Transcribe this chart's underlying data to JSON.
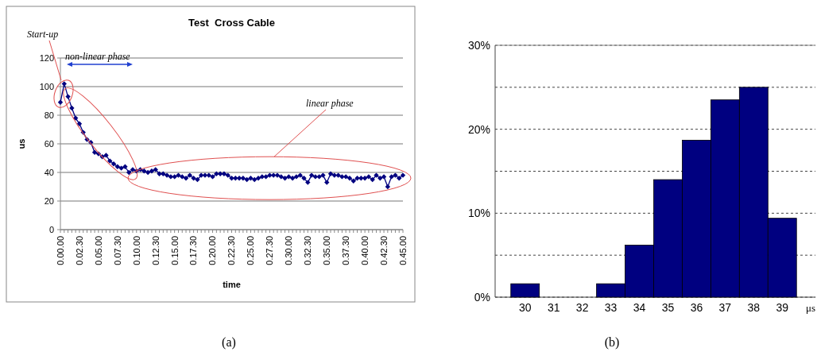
{
  "chart_data": [
    {
      "type": "line",
      "title": "Test  Cross Cable",
      "xlabel": "time",
      "ylabel": "us",
      "categories": [
        "0.00.00",
        null,
        null,
        null,
        null,
        "0.02.30",
        null,
        null,
        null,
        null,
        "0.05.00",
        null,
        null,
        null,
        null,
        "0.07.30",
        null,
        null,
        null,
        null,
        "0.10.00",
        null,
        null,
        null,
        null,
        "0.12.30",
        null,
        null,
        null,
        null,
        "0.15.00",
        null,
        null,
        null,
        null,
        "0.17.30",
        null,
        null,
        null,
        null,
        "0.20.00",
        null,
        null,
        null,
        null,
        "0.22.30",
        null,
        null,
        null,
        null,
        "0.25.00",
        null,
        null,
        null,
        null,
        "0.27.30",
        null,
        null,
        null,
        null,
        "0.30.00",
        null,
        null,
        null,
        null,
        "0.32.30",
        null,
        null,
        null,
        null,
        "0.35.00",
        null,
        null,
        null,
        null,
        "0.37.30",
        null,
        null,
        null,
        null,
        "0.40.00",
        null,
        null,
        null,
        null,
        "0.42.30",
        null,
        null,
        null,
        null,
        "0.45.00"
      ],
      "series": [
        {
          "color": "#000080",
          "values": [
            89,
            102,
            93,
            85,
            78,
            74,
            68,
            63,
            61,
            54,
            53,
            51,
            52,
            48,
            46,
            44,
            43,
            44,
            40,
            42,
            41,
            42,
            41,
            40,
            41,
            42,
            39,
            39,
            38,
            37,
            37,
            38,
            37,
            36,
            38,
            36,
            35,
            38,
            38,
            38,
            37,
            39,
            39,
            39,
            38,
            36,
            36,
            36,
            36,
            35,
            36,
            35,
            36,
            37,
            37,
            38,
            38,
            38,
            37,
            36,
            37,
            36,
            37,
            38,
            36,
            33,
            38,
            37,
            37,
            38,
            33,
            39,
            38,
            38,
            37,
            37,
            36,
            34,
            36,
            36,
            36,
            37,
            35,
            38,
            36,
            37,
            30,
            37,
            38,
            36,
            38
          ]
        }
      ],
      "ylim": [
        0,
        120
      ],
      "yticks": [
        0,
        20,
        40,
        60,
        80,
        100,
        120
      ],
      "grid": "y",
      "marker": "diamond",
      "line_style": "solid",
      "annotations": [
        "Start-up",
        "non-linear phase",
        "linear phase",
        "(a)"
      ]
    },
    {
      "type": "bar",
      "xlabel": "μs",
      "categories": [
        "30",
        "31",
        "32",
        "33",
        "34",
        "35",
        "36",
        "37",
        "38",
        "39"
      ],
      "series": [
        {
          "color": "#000080",
          "values": [
            1.6,
            0,
            0,
            1.6,
            6.2,
            14,
            18.7,
            23.5,
            25,
            9.4
          ]
        }
      ],
      "ylim": [
        0,
        30
      ],
      "yticks": [
        {
          "value": 0,
          "label": "0%"
        },
        {
          "value": 5,
          "label": null
        },
        {
          "value": 10,
          "label": "10%"
        },
        {
          "value": 15,
          "label": null
        },
        {
          "value": 20,
          "label": "20%"
        },
        {
          "value": 25,
          "label": null
        },
        {
          "value": 30,
          "label": "30%"
        }
      ],
      "grid": "y",
      "annotations": [
        "(b)"
      ]
    }
  ]
}
